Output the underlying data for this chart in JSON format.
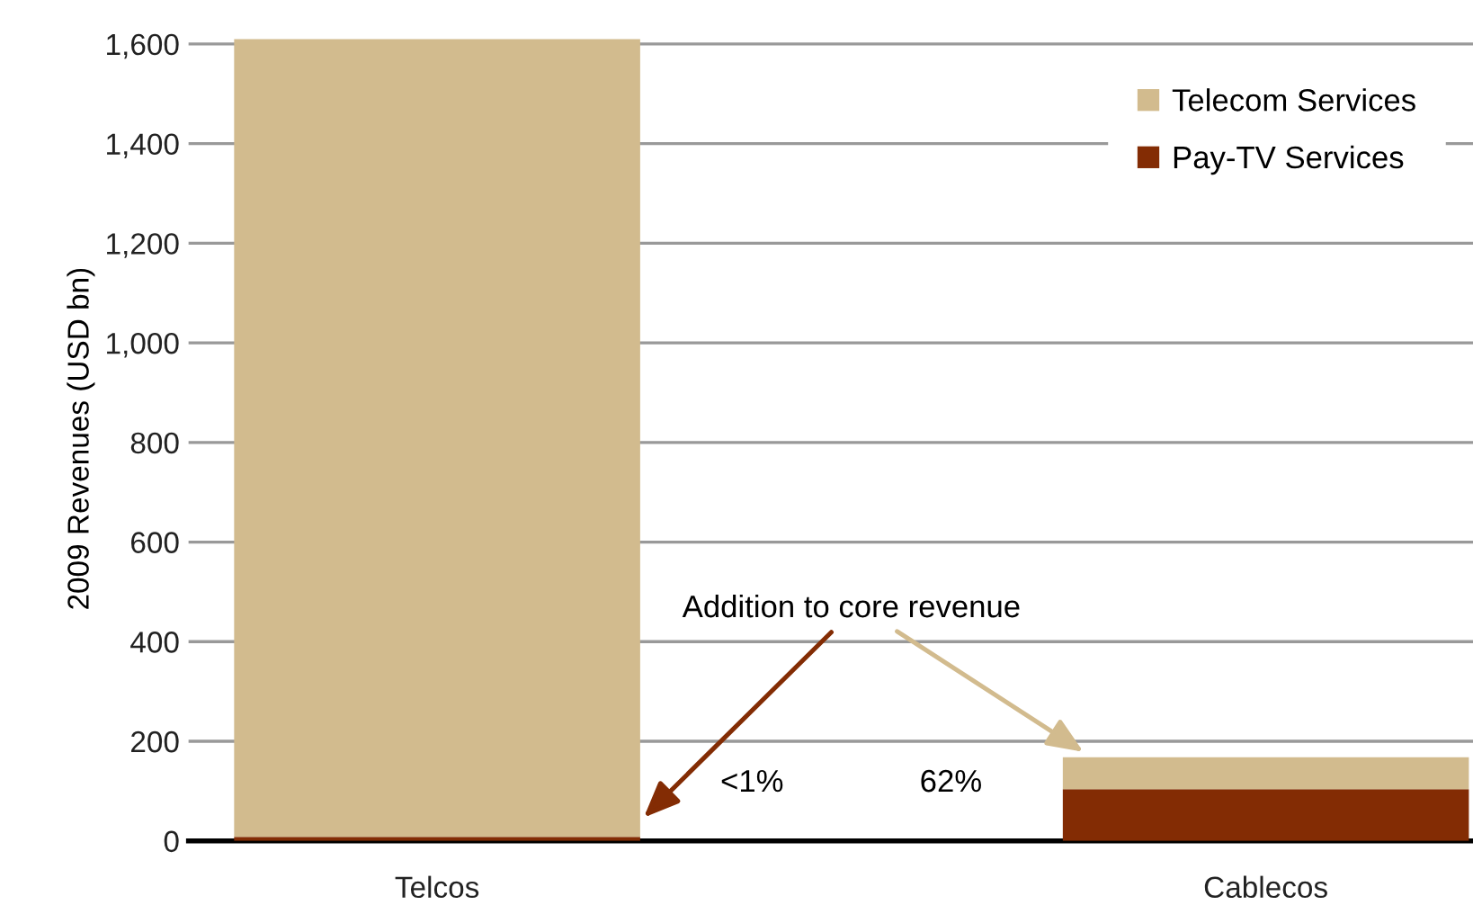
{
  "chart_data": {
    "type": "bar",
    "stacked": true,
    "ylabel": "2009 Revenues (USD bn)",
    "categories": [
      "Telcos",
      "Cablecos"
    ],
    "series": [
      {
        "name": "Pay-TV Services",
        "color": "#832c04",
        "values": [
          8,
          104
        ]
      },
      {
        "name": "Telecom Services",
        "color": "#d2bb8e",
        "values": [
          1602,
          64
        ]
      }
    ],
    "ylim": [
      0,
      1615
    ],
    "yticks": [
      {
        "value": 0,
        "label": "0"
      },
      {
        "value": 200,
        "label": "200"
      },
      {
        "value": 400,
        "label": "400"
      },
      {
        "value": 600,
        "label": "600"
      },
      {
        "value": 800,
        "label": "800"
      },
      {
        "value": 1000,
        "label": "1,000"
      },
      {
        "value": 1200,
        "label": "1,200"
      },
      {
        "value": 1400,
        "label": "1,400"
      },
      {
        "value": 1600,
        "label": "1,600"
      }
    ],
    "grid": "y",
    "legend": "top right",
    "annotations": [
      "Addition to core revenue",
      "<1%",
      "62%"
    ]
  }
}
